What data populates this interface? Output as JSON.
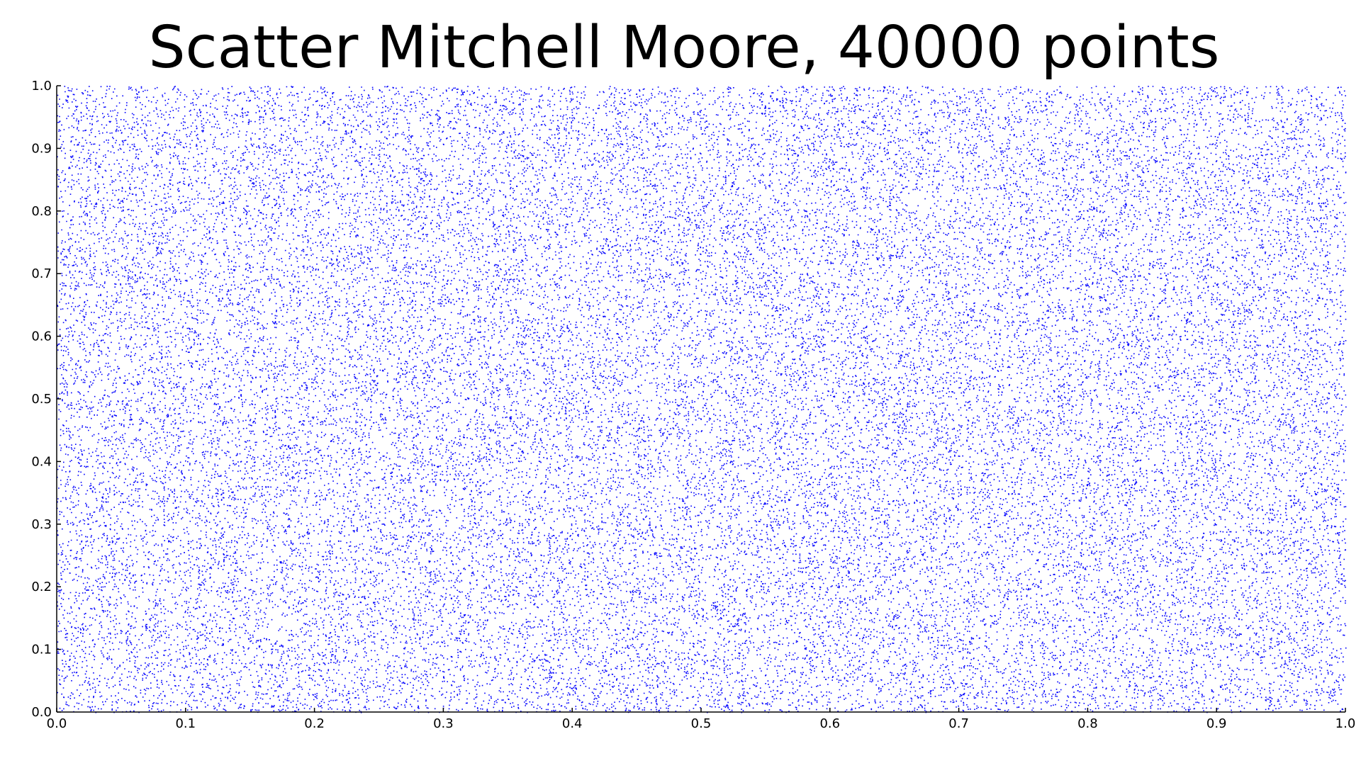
{
  "chart_data": {
    "type": "scatter",
    "title": "Scatter Mitchell Moore, 40000 points",
    "point_count": 40000,
    "xlim": [
      0.0,
      1.0
    ],
    "ylim": [
      0.0,
      1.0
    ],
    "x_ticks": [
      "0.0",
      "0.1",
      "0.2",
      "0.3",
      "0.4",
      "0.5",
      "0.6",
      "0.7",
      "0.8",
      "0.9",
      "1.0"
    ],
    "y_ticks": [
      "0.0",
      "0.1",
      "0.2",
      "0.3",
      "0.4",
      "0.5",
      "0.6",
      "0.7",
      "0.8",
      "0.9",
      "1.0"
    ],
    "xlabel": "",
    "ylabel": "",
    "grid": false,
    "legend": "none",
    "marker_color": "#0000ff",
    "distribution": "uniform quasi-random points filling the unit square [0,1]×[0,1]"
  }
}
